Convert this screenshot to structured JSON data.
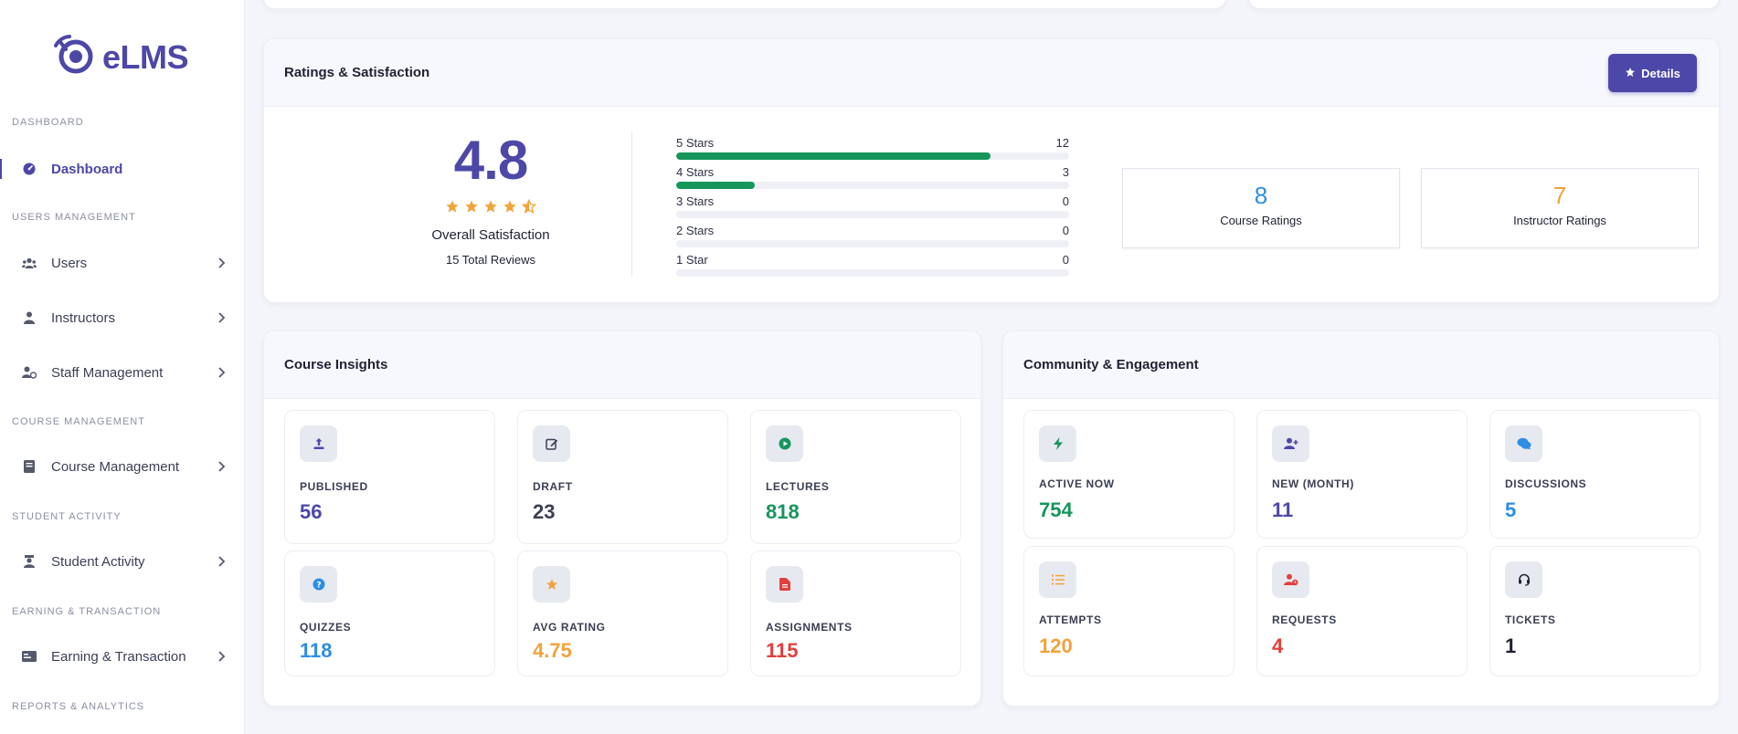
{
  "app": {
    "name": "eLMS"
  },
  "sidebar": {
    "sections": [
      {
        "title": "DASHBOARD"
      },
      {
        "title": "USERS MANAGEMENT"
      },
      {
        "title": "COURSE MANAGEMENT"
      },
      {
        "title": "STUDENT ACTIVITY"
      },
      {
        "title": "EARNING & TRANSACTION"
      },
      {
        "title": "REPORTS & ANALYTICS"
      }
    ],
    "items": [
      {
        "label": "Dashboard",
        "icon": "gauge-icon"
      },
      {
        "label": "Users",
        "icon": "users-icon"
      },
      {
        "label": "Instructors",
        "icon": "instructor-icon"
      },
      {
        "label": "Staff Management",
        "icon": "staff-icon"
      },
      {
        "label": "Course Management",
        "icon": "book-icon"
      },
      {
        "label": "Student Activity",
        "icon": "student-icon"
      },
      {
        "label": "Earning & Transaction",
        "icon": "money-icon"
      }
    ]
  },
  "ratings": {
    "title": "Ratings & Satisfaction",
    "details_label": "Details",
    "score": "4.8",
    "stars_value": 4.5,
    "overall_label": "Overall Satisfaction",
    "total_reviews": "15 Total Reviews",
    "distribution": [
      {
        "label": "5 Stars",
        "count": "12",
        "fraction": 0.8
      },
      {
        "label": "4 Stars",
        "count": "3",
        "fraction": 0.2
      },
      {
        "label": "3 Stars",
        "count": "0",
        "fraction": 0
      },
      {
        "label": "2 Stars",
        "count": "0",
        "fraction": 0
      },
      {
        "label": "1 Star",
        "count": "0",
        "fraction": 0
      }
    ],
    "course_ratings": {
      "value": "8",
      "label": "Course Ratings"
    },
    "instructor_ratings": {
      "value": "7",
      "label": "Instructor Ratings"
    }
  },
  "course_insights": {
    "title": "Course Insights",
    "tiles": [
      {
        "label": "PUBLISHED",
        "value": "56",
        "icon": "upload-icon"
      },
      {
        "label": "DRAFT",
        "value": "23",
        "icon": "edit-icon"
      },
      {
        "label": "LECTURES",
        "value": "818",
        "icon": "play-icon"
      },
      {
        "label": "QUIZZES",
        "value": "118",
        "icon": "question-icon"
      },
      {
        "label": "AVG RATING",
        "value": "4.75",
        "icon": "star-icon"
      },
      {
        "label": "ASSIGNMENTS",
        "value": "115",
        "icon": "file-icon"
      }
    ]
  },
  "community": {
    "title": "Community & Engagement",
    "tiles": [
      {
        "label": "ACTIVE NOW",
        "value": "754",
        "icon": "bolt-icon"
      },
      {
        "label": "NEW (MONTH)",
        "value": "11",
        "icon": "user-plus-icon"
      },
      {
        "label": "DISCUSSIONS",
        "value": "5",
        "icon": "comments-icon"
      },
      {
        "label": "ATTEMPTS",
        "value": "120",
        "icon": "list-icon"
      },
      {
        "label": "REQUESTS",
        "value": "4",
        "icon": "user-clock-icon"
      },
      {
        "label": "TICKETS",
        "value": "1",
        "icon": "headset-icon"
      }
    ]
  },
  "colors": {
    "brand": "#4d47a8",
    "blue": "#2f8de4",
    "green": "#17965b",
    "orange": "#f2a33a",
    "red": "#e0403f",
    "dark": "#1f2233",
    "gray": "#3b3f54"
  }
}
